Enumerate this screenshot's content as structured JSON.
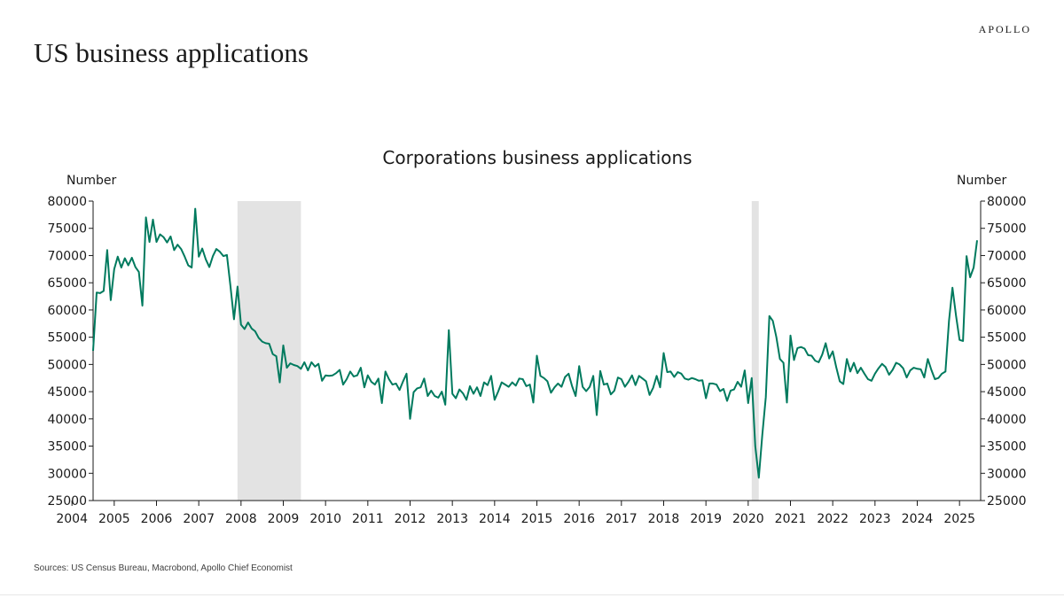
{
  "header": {
    "title": "US business applications",
    "brand": "APOLLO"
  },
  "footer": {
    "source": "Sources: US Census Bureau, Macrobond, Apollo Chief Economist"
  },
  "colors": {
    "line": "#007a5e",
    "recession": "#e3e3e3",
    "axis": "#1a1a1a"
  },
  "chart_data": {
    "type": "line",
    "title": "Corporations business applications",
    "ylabel_left": "Number",
    "ylabel_right": "Number",
    "ylim": [
      25000,
      80000
    ],
    "yticks": [
      25000,
      30000,
      35000,
      40000,
      45000,
      50000,
      55000,
      60000,
      65000,
      70000,
      75000,
      80000
    ],
    "xlim": [
      "2004-07",
      "2025-07"
    ],
    "xticks": [
      "2004",
      "2005",
      "2006",
      "2007",
      "2008",
      "2009",
      "2010",
      "2011",
      "2012",
      "2013",
      "2014",
      "2015",
      "2016",
      "2017",
      "2018",
      "2019",
      "2020",
      "2021",
      "2022",
      "2023",
      "2024",
      "2025"
    ],
    "grid": false,
    "legend": "none",
    "recessions": [
      {
        "start": "2007-12",
        "end": "2009-06"
      },
      {
        "start": "2020-02",
        "end": "2020-04"
      }
    ],
    "series": [
      {
        "points": [
          [
            "2004-07",
            52500
          ],
          [
            "2004-08",
            63200
          ],
          [
            "2004-09",
            63100
          ],
          [
            "2004-10",
            63500
          ],
          [
            "2004-11",
            71000
          ],
          [
            "2004-12",
            61800
          ],
          [
            "2005-01",
            67500
          ],
          [
            "2005-02",
            69800
          ],
          [
            "2005-03",
            67800
          ],
          [
            "2005-04",
            69500
          ],
          [
            "2005-05",
            68200
          ],
          [
            "2005-06",
            69600
          ],
          [
            "2005-07",
            67900
          ],
          [
            "2005-08",
            67000
          ],
          [
            "2005-09",
            60800
          ],
          [
            "2005-10",
            77000
          ],
          [
            "2005-11",
            72500
          ],
          [
            "2005-12",
            76600
          ],
          [
            "2006-01",
            72500
          ],
          [
            "2006-02",
            73900
          ],
          [
            "2006-03",
            73400
          ],
          [
            "2006-04",
            72400
          ],
          [
            "2006-05",
            73500
          ],
          [
            "2006-06",
            71000
          ],
          [
            "2006-07",
            72000
          ],
          [
            "2006-08",
            71200
          ],
          [
            "2006-09",
            69800
          ],
          [
            "2006-10",
            68200
          ],
          [
            "2006-11",
            67800
          ],
          [
            "2006-12",
            78600
          ],
          [
            "2007-01",
            69800
          ],
          [
            "2007-02",
            71300
          ],
          [
            "2007-03",
            69300
          ],
          [
            "2007-04",
            67900
          ],
          [
            "2007-05",
            69900
          ],
          [
            "2007-06",
            71200
          ],
          [
            "2007-07",
            70700
          ],
          [
            "2007-08",
            69900
          ],
          [
            "2007-09",
            70100
          ],
          [
            "2007-10",
            64400
          ],
          [
            "2007-11",
            58300
          ],
          [
            "2007-12",
            64300
          ],
          [
            "2008-01",
            57300
          ],
          [
            "2008-02",
            56500
          ],
          [
            "2008-03",
            57700
          ],
          [
            "2008-04",
            56600
          ],
          [
            "2008-05",
            56100
          ],
          [
            "2008-06",
            54900
          ],
          [
            "2008-07",
            54200
          ],
          [
            "2008-08",
            53900
          ],
          [
            "2008-09",
            53800
          ],
          [
            "2008-10",
            51900
          ],
          [
            "2008-11",
            51500
          ],
          [
            "2008-12",
            46700
          ],
          [
            "2009-01",
            53500
          ],
          [
            "2009-02",
            49400
          ],
          [
            "2009-03",
            50200
          ],
          [
            "2009-04",
            49900
          ],
          [
            "2009-05",
            49700
          ],
          [
            "2009-06",
            49200
          ],
          [
            "2009-07",
            50400
          ],
          [
            "2009-08",
            48900
          ],
          [
            "2009-09",
            50400
          ],
          [
            "2009-10",
            49600
          ],
          [
            "2009-11",
            50100
          ],
          [
            "2009-12",
            47000
          ],
          [
            "2010-01",
            48000
          ],
          [
            "2010-02",
            47900
          ],
          [
            "2010-03",
            48000
          ],
          [
            "2010-04",
            48400
          ],
          [
            "2010-05",
            49000
          ],
          [
            "2010-06",
            46300
          ],
          [
            "2010-07",
            47300
          ],
          [
            "2010-08",
            48700
          ],
          [
            "2010-09",
            47800
          ],
          [
            "2010-10",
            48000
          ],
          [
            "2010-11",
            49400
          ],
          [
            "2010-12",
            45800
          ],
          [
            "2011-01",
            48000
          ],
          [
            "2011-02",
            46800
          ],
          [
            "2011-03",
            46300
          ],
          [
            "2011-04",
            47400
          ],
          [
            "2011-05",
            42900
          ],
          [
            "2011-06",
            48700
          ],
          [
            "2011-07",
            47300
          ],
          [
            "2011-08",
            46300
          ],
          [
            "2011-09",
            46500
          ],
          [
            "2011-10",
            45300
          ],
          [
            "2011-11",
            46900
          ],
          [
            "2011-12",
            48300
          ],
          [
            "2012-01",
            40000
          ],
          [
            "2012-02",
            44900
          ],
          [
            "2012-03",
            45600
          ],
          [
            "2012-04",
            45800
          ],
          [
            "2012-05",
            47400
          ],
          [
            "2012-06",
            44200
          ],
          [
            "2012-07",
            45200
          ],
          [
            "2012-08",
            44200
          ],
          [
            "2012-09",
            43900
          ],
          [
            "2012-10",
            45000
          ],
          [
            "2012-11",
            42600
          ],
          [
            "2012-12",
            56300
          ],
          [
            "2013-01",
            44600
          ],
          [
            "2013-02",
            43800
          ],
          [
            "2013-03",
            45400
          ],
          [
            "2013-04",
            44700
          ],
          [
            "2013-05",
            43500
          ],
          [
            "2013-06",
            46000
          ],
          [
            "2013-07",
            44600
          ],
          [
            "2013-08",
            45800
          ],
          [
            "2013-09",
            44200
          ],
          [
            "2013-10",
            46700
          ],
          [
            "2013-11",
            46200
          ],
          [
            "2013-12",
            47900
          ],
          [
            "2014-01",
            43500
          ],
          [
            "2014-02",
            45000
          ],
          [
            "2014-03",
            46700
          ],
          [
            "2014-04",
            46300
          ],
          [
            "2014-05",
            45900
          ],
          [
            "2014-06",
            46700
          ],
          [
            "2014-07",
            46100
          ],
          [
            "2014-08",
            47400
          ],
          [
            "2014-09",
            47300
          ],
          [
            "2014-10",
            46000
          ],
          [
            "2014-11",
            46300
          ],
          [
            "2014-12",
            43000
          ],
          [
            "2015-01",
            51600
          ],
          [
            "2015-02",
            47900
          ],
          [
            "2015-03",
            47500
          ],
          [
            "2015-04",
            46900
          ],
          [
            "2015-05",
            44800
          ],
          [
            "2015-06",
            45800
          ],
          [
            "2015-07",
            46500
          ],
          [
            "2015-08",
            45900
          ],
          [
            "2015-09",
            47700
          ],
          [
            "2015-10",
            48300
          ],
          [
            "2015-11",
            46000
          ],
          [
            "2015-12",
            44200
          ],
          [
            "2016-01",
            49700
          ],
          [
            "2016-02",
            45900
          ],
          [
            "2016-03",
            45100
          ],
          [
            "2016-04",
            45900
          ],
          [
            "2016-05",
            47900
          ],
          [
            "2016-06",
            40700
          ],
          [
            "2016-07",
            48800
          ],
          [
            "2016-08",
            46300
          ],
          [
            "2016-09",
            46500
          ],
          [
            "2016-10",
            44500
          ],
          [
            "2016-11",
            45200
          ],
          [
            "2016-12",
            47600
          ],
          [
            "2017-01",
            47300
          ],
          [
            "2017-02",
            45900
          ],
          [
            "2017-03",
            46800
          ],
          [
            "2017-04",
            48000
          ],
          [
            "2017-05",
            46200
          ],
          [
            "2017-06",
            47900
          ],
          [
            "2017-07",
            47400
          ],
          [
            "2017-08",
            46900
          ],
          [
            "2017-09",
            44400
          ],
          [
            "2017-10",
            45700
          ],
          [
            "2017-11",
            47900
          ],
          [
            "2017-12",
            45800
          ],
          [
            "2018-01",
            52100
          ],
          [
            "2018-02",
            48600
          ],
          [
            "2018-03",
            48700
          ],
          [
            "2018-04",
            47700
          ],
          [
            "2018-05",
            48600
          ],
          [
            "2018-06",
            48300
          ],
          [
            "2018-07",
            47400
          ],
          [
            "2018-08",
            47200
          ],
          [
            "2018-09",
            47500
          ],
          [
            "2018-10",
            47300
          ],
          [
            "2018-11",
            47000
          ],
          [
            "2018-12",
            47100
          ],
          [
            "2019-01",
            43800
          ],
          [
            "2019-02",
            46500
          ],
          [
            "2019-03",
            46500
          ],
          [
            "2019-04",
            46300
          ],
          [
            "2019-05",
            45100
          ],
          [
            "2019-06",
            45500
          ],
          [
            "2019-07",
            43300
          ],
          [
            "2019-08",
            45200
          ],
          [
            "2019-09",
            45400
          ],
          [
            "2019-10",
            46800
          ],
          [
            "2019-11",
            45900
          ],
          [
            "2019-12",
            48900
          ],
          [
            "2020-01",
            42900
          ],
          [
            "2020-02",
            47500
          ],
          [
            "2020-03",
            35000
          ],
          [
            "2020-04",
            29200
          ],
          [
            "2020-05",
            37000
          ],
          [
            "2020-06",
            44000
          ],
          [
            "2020-07",
            58900
          ],
          [
            "2020-08",
            58000
          ],
          [
            "2020-09",
            55000
          ],
          [
            "2020-10",
            51000
          ],
          [
            "2020-11",
            50300
          ],
          [
            "2020-12",
            43000
          ],
          [
            "2021-01",
            55300
          ],
          [
            "2021-02",
            50800
          ],
          [
            "2021-03",
            53000
          ],
          [
            "2021-04",
            53200
          ],
          [
            "2021-05",
            52900
          ],
          [
            "2021-06",
            51700
          ],
          [
            "2021-07",
            51600
          ],
          [
            "2021-08",
            50700
          ],
          [
            "2021-09",
            50400
          ],
          [
            "2021-10",
            51800
          ],
          [
            "2021-11",
            53900
          ],
          [
            "2021-12",
            51100
          ],
          [
            "2022-01",
            52400
          ],
          [
            "2022-02",
            49500
          ],
          [
            "2022-03",
            46900
          ],
          [
            "2022-04",
            46400
          ],
          [
            "2022-05",
            51000
          ],
          [
            "2022-06",
            48700
          ],
          [
            "2022-07",
            50300
          ],
          [
            "2022-08",
            48400
          ],
          [
            "2022-09",
            49400
          ],
          [
            "2022-10",
            48300
          ],
          [
            "2022-11",
            47300
          ],
          [
            "2022-12",
            47000
          ],
          [
            "2023-01",
            48300
          ],
          [
            "2023-02",
            49300
          ],
          [
            "2023-03",
            50100
          ],
          [
            "2023-04",
            49500
          ],
          [
            "2023-05",
            48100
          ],
          [
            "2023-06",
            49000
          ],
          [
            "2023-07",
            50300
          ],
          [
            "2023-08",
            50000
          ],
          [
            "2023-09",
            49300
          ],
          [
            "2023-10",
            47600
          ],
          [
            "2023-11",
            48900
          ],
          [
            "2023-12",
            49400
          ],
          [
            "2024-01",
            49200
          ],
          [
            "2024-02",
            49100
          ],
          [
            "2024-03",
            47600
          ],
          [
            "2024-04",
            51000
          ],
          [
            "2024-05",
            49000
          ],
          [
            "2024-06",
            47300
          ],
          [
            "2024-07",
            47500
          ],
          [
            "2024-08",
            48300
          ],
          [
            "2024-09",
            48700
          ],
          [
            "2024-10",
            58000
          ],
          [
            "2024-11",
            64100
          ],
          [
            "2024-12",
            59000
          ],
          [
            "2025-01",
            54500
          ],
          [
            "2025-02",
            54300
          ],
          [
            "2025-03",
            69900
          ],
          [
            "2025-04",
            66000
          ],
          [
            "2025-05",
            67800
          ],
          [
            "2025-06",
            72800
          ]
        ]
      }
    ]
  }
}
